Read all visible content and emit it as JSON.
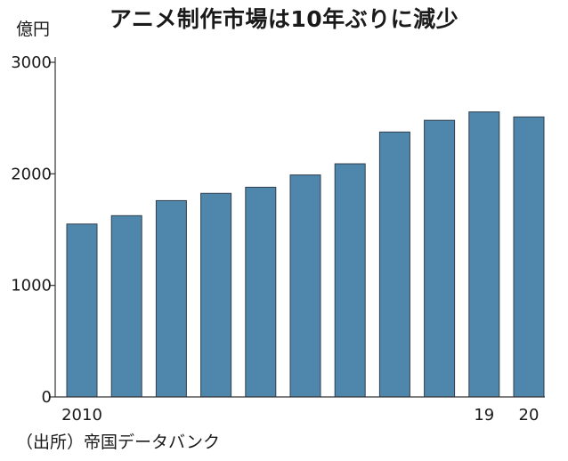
{
  "title": "アニメ制作市場は10年ぶりに減少",
  "unit": "億円",
  "source": "（出所）帝国データバンク",
  "colors": {
    "bar": "#4f86ab",
    "bar_stroke": "#2f3f4f",
    "axis": "#333333",
    "text": "#1a1a1a"
  },
  "chart_data": {
    "type": "bar",
    "categories": [
      "2010",
      "",
      "",
      "",
      "",
      "",
      "",
      "",
      "",
      "19",
      "20"
    ],
    "values": [
      1550,
      1625,
      1760,
      1825,
      1880,
      1990,
      2090,
      2375,
      2480,
      2555,
      2510
    ],
    "title": "アニメ制作市場は10年ぶりに減少",
    "xlabel": "",
    "ylabel": "億円",
    "ylim": [
      0,
      3000
    ],
    "yticks": [
      0,
      1000,
      2000,
      3000
    ],
    "grid": false,
    "legend": "none"
  }
}
